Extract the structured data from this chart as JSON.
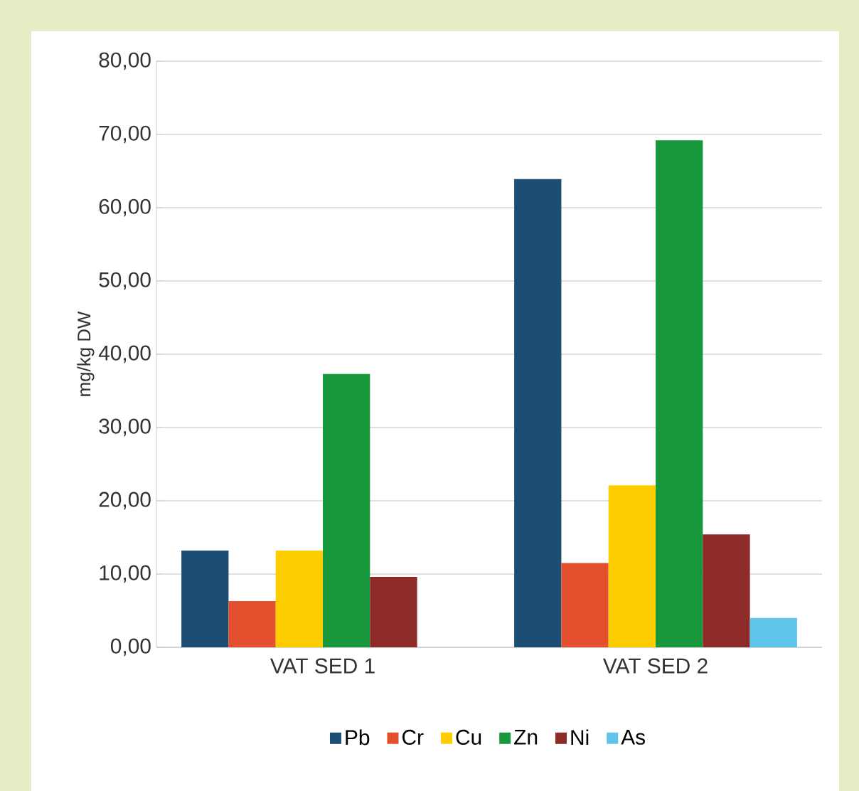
{
  "chart_data": {
    "type": "bar",
    "ylabel": "mg/kg DW",
    "categories": [
      "VAT SED 1",
      "VAT SED 2"
    ],
    "series": [
      {
        "name": "Pb",
        "color": "#1c4e74",
        "values": [
          13.2,
          63.9
        ]
      },
      {
        "name": "Cr",
        "color": "#e2502e",
        "values": [
          6.3,
          11.5
        ]
      },
      {
        "name": "Cu",
        "color": "#fecd00",
        "values": [
          13.2,
          22.1
        ]
      },
      {
        "name": "Zn",
        "color": "#18983c",
        "values": [
          37.3,
          69.2
        ]
      },
      {
        "name": "Ni",
        "color": "#8c2b28",
        "values": [
          9.6,
          15.4
        ]
      },
      {
        "name": "As",
        "color": "#60c3ea",
        "values": [
          null,
          4.0
        ]
      }
    ],
    "ylim": [
      0,
      80
    ],
    "yticks": [
      {
        "value": 0,
        "label": "0,00"
      },
      {
        "value": 10,
        "label": "10,00"
      },
      {
        "value": 20,
        "label": "20,00"
      },
      {
        "value": 30,
        "label": "30,00"
      },
      {
        "value": 40,
        "label": "40,00"
      },
      {
        "value": 50,
        "label": "50,00"
      },
      {
        "value": 60,
        "label": "60,00"
      },
      {
        "value": 70,
        "label": "70,00"
      },
      {
        "value": 80,
        "label": "80,00"
      }
    ],
    "grid": "y",
    "legend": "bottom"
  }
}
